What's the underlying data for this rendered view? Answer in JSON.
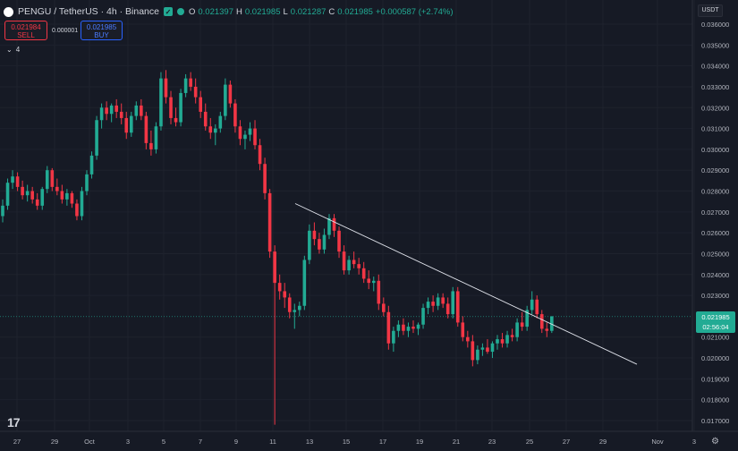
{
  "header": {
    "symbol": "PENGU / TetherUS · 4h · Binance",
    "ohlc": {
      "o_label": "O",
      "o_value": "0.021397",
      "h_label": "H",
      "h_value": "0.021985",
      "l_label": "L",
      "l_value": "0.021287",
      "c_label": "C",
      "c_value": "0.021985",
      "change": "+0.000587 (+2.74%)"
    }
  },
  "trade": {
    "sell_price": "0.021984",
    "sell_label": "SELL",
    "spread": "0.000001",
    "buy_price": "0.021985",
    "buy_label": "BUY"
  },
  "indicators_toggle": "4",
  "currency_button": "USDT",
  "price_tag": {
    "price": "0.021985",
    "countdown": "02:56:04"
  },
  "colors": {
    "up": "#22ab94",
    "down": "#f23645",
    "background": "#161a25",
    "trendline": "#e0e3eb"
  },
  "chart_data": {
    "type": "candlestick",
    "timeframe": "4h",
    "y_ticks": [
      "0.036000",
      "0.035000",
      "0.034000",
      "0.033000",
      "0.032000",
      "0.031000",
      "0.030000",
      "0.029000",
      "0.028000",
      "0.027000",
      "0.026000",
      "0.025000",
      "0.024000",
      "0.023000",
      "0.021000",
      "0.020000",
      "0.019000",
      "0.018000",
      "0.017000"
    ],
    "ylim": [
      0.0167,
      0.0366
    ],
    "x_ticks": [
      "27",
      "29",
      "Oct",
      "3",
      "5",
      "7",
      "9",
      "11",
      "13",
      "15",
      "17",
      "19",
      "21",
      "23",
      "25",
      "27",
      "29",
      "Nov",
      "3"
    ],
    "last_price": 0.021985,
    "trendline": {
      "from": [
        "Oct 12",
        0.0274
      ],
      "to": [
        "Nov 1",
        0.0197
      ]
    },
    "candles": [
      [
        0.0268,
        0.0276,
        0.0265,
        0.0273
      ],
      [
        0.0273,
        0.0286,
        0.0271,
        0.0284
      ],
      [
        0.0284,
        0.029,
        0.0281,
        0.0287
      ],
      [
        0.0287,
        0.0289,
        0.028,
        0.0282
      ],
      [
        0.0282,
        0.0285,
        0.0276,
        0.0278
      ],
      [
        0.0278,
        0.0283,
        0.0275,
        0.028
      ],
      [
        0.028,
        0.0282,
        0.0274,
        0.0276
      ],
      [
        0.0276,
        0.0279,
        0.0271,
        0.0273
      ],
      [
        0.0273,
        0.0282,
        0.0271,
        0.0281
      ],
      [
        0.0281,
        0.0292,
        0.0279,
        0.029
      ],
      [
        0.029,
        0.0291,
        0.028,
        0.0282
      ],
      [
        0.0282,
        0.0286,
        0.0278,
        0.028
      ],
      [
        0.028,
        0.0283,
        0.0274,
        0.0276
      ],
      [
        0.0276,
        0.0281,
        0.0273,
        0.0279
      ],
      [
        0.0279,
        0.028,
        0.0272,
        0.0274
      ],
      [
        0.0274,
        0.0276,
        0.0266,
        0.0268
      ],
      [
        0.0268,
        0.0282,
        0.0266,
        0.028
      ],
      [
        0.028,
        0.029,
        0.0278,
        0.0288
      ],
      [
        0.0288,
        0.0299,
        0.0286,
        0.0297
      ],
      [
        0.0297,
        0.0316,
        0.0295,
        0.0314
      ],
      [
        0.0314,
        0.0322,
        0.031,
        0.032
      ],
      [
        0.032,
        0.0323,
        0.0314,
        0.0317
      ],
      [
        0.0317,
        0.0322,
        0.0313,
        0.0321
      ],
      [
        0.0321,
        0.0324,
        0.0315,
        0.0318
      ],
      [
        0.0318,
        0.0322,
        0.0312,
        0.0315
      ],
      [
        0.0315,
        0.0318,
        0.0305,
        0.0308
      ],
      [
        0.0308,
        0.0318,
        0.0306,
        0.0316
      ],
      [
        0.0316,
        0.0323,
        0.0314,
        0.0321
      ],
      [
        0.0321,
        0.0324,
        0.0314,
        0.0316
      ],
      [
        0.0316,
        0.0318,
        0.03,
        0.0303
      ],
      [
        0.0303,
        0.0309,
        0.0297,
        0.03
      ],
      [
        0.03,
        0.0313,
        0.0298,
        0.0311
      ],
      [
        0.0311,
        0.0337,
        0.0309,
        0.0334
      ],
      [
        0.0334,
        0.0338,
        0.0322,
        0.0325
      ],
      [
        0.0325,
        0.0328,
        0.0312,
        0.0315
      ],
      [
        0.0315,
        0.032,
        0.0311,
        0.0313
      ],
      [
        0.0313,
        0.0329,
        0.0311,
        0.0327
      ],
      [
        0.0327,
        0.0336,
        0.0325,
        0.0334
      ],
      [
        0.0334,
        0.0337,
        0.0328,
        0.033
      ],
      [
        0.033,
        0.0334,
        0.0322,
        0.0325
      ],
      [
        0.0325,
        0.0328,
        0.0315,
        0.0318
      ],
      [
        0.0318,
        0.0322,
        0.0309,
        0.0311
      ],
      [
        0.0311,
        0.0315,
        0.0305,
        0.0308
      ],
      [
        0.0308,
        0.0312,
        0.0302,
        0.031
      ],
      [
        0.031,
        0.0318,
        0.0308,
        0.0316
      ],
      [
        0.0316,
        0.0334,
        0.0314,
        0.0331
      ],
      [
        0.0331,
        0.0333,
        0.032,
        0.0322
      ],
      [
        0.0322,
        0.0324,
        0.0308,
        0.0311
      ],
      [
        0.0311,
        0.0314,
        0.0302,
        0.0305
      ],
      [
        0.0305,
        0.0309,
        0.03,
        0.0307
      ],
      [
        0.0307,
        0.0313,
        0.0304,
        0.031
      ],
      [
        0.031,
        0.0314,
        0.03,
        0.0302
      ],
      [
        0.0302,
        0.0305,
        0.029,
        0.0293
      ],
      [
        0.0293,
        0.0296,
        0.0276,
        0.0279
      ],
      [
        0.0279,
        0.0281,
        0.0248,
        0.0251
      ],
      [
        0.0251,
        0.0254,
        0.0168,
        0.0236
      ],
      [
        0.0236,
        0.024,
        0.0228,
        0.0232
      ],
      [
        0.0232,
        0.0236,
        0.0224,
        0.0229
      ],
      [
        0.0229,
        0.0231,
        0.0219,
        0.0222
      ],
      [
        0.0222,
        0.0226,
        0.0214,
        0.0223
      ],
      [
        0.0223,
        0.0227,
        0.022,
        0.0225
      ],
      [
        0.0225,
        0.0249,
        0.0223,
        0.0247
      ],
      [
        0.0247,
        0.0264,
        0.0245,
        0.0261
      ],
      [
        0.0261,
        0.0265,
        0.0254,
        0.0257
      ],
      [
        0.0257,
        0.026,
        0.025,
        0.0252
      ],
      [
        0.0252,
        0.0262,
        0.025,
        0.0259
      ],
      [
        0.0259,
        0.0269,
        0.0257,
        0.0267
      ],
      [
        0.0267,
        0.0269,
        0.0258,
        0.0261
      ],
      [
        0.0261,
        0.0263,
        0.0248,
        0.0251
      ],
      [
        0.0251,
        0.0254,
        0.024,
        0.0242
      ],
      [
        0.0242,
        0.0249,
        0.024,
        0.0247
      ],
      [
        0.0247,
        0.0251,
        0.0243,
        0.0245
      ],
      [
        0.0245,
        0.0248,
        0.024,
        0.0243
      ],
      [
        0.0243,
        0.0246,
        0.0236,
        0.0238
      ],
      [
        0.0238,
        0.0242,
        0.0233,
        0.0236
      ],
      [
        0.0236,
        0.0239,
        0.0232,
        0.0237
      ],
      [
        0.0237,
        0.024,
        0.0223,
        0.0226
      ],
      [
        0.0226,
        0.0229,
        0.022,
        0.0222
      ],
      [
        0.0222,
        0.0225,
        0.0204,
        0.0207
      ],
      [
        0.0207,
        0.0215,
        0.0203,
        0.0213
      ],
      [
        0.0213,
        0.0218,
        0.021,
        0.0216
      ],
      [
        0.0216,
        0.0219,
        0.0211,
        0.0213
      ],
      [
        0.0213,
        0.0217,
        0.021,
        0.0215
      ],
      [
        0.0215,
        0.0218,
        0.0212,
        0.0214
      ],
      [
        0.0214,
        0.0217,
        0.0211,
        0.0216
      ],
      [
        0.0216,
        0.0226,
        0.0214,
        0.0224
      ],
      [
        0.0224,
        0.0229,
        0.0221,
        0.0227
      ],
      [
        0.0227,
        0.023,
        0.0222,
        0.0225
      ],
      [
        0.0225,
        0.0231,
        0.0223,
        0.0229
      ],
      [
        0.0229,
        0.0231,
        0.0224,
        0.0226
      ],
      [
        0.0226,
        0.0229,
        0.0219,
        0.0221
      ],
      [
        0.0221,
        0.0234,
        0.0219,
        0.0232
      ],
      [
        0.0232,
        0.0234,
        0.0215,
        0.0217
      ],
      [
        0.0217,
        0.022,
        0.0208,
        0.021
      ],
      [
        0.021,
        0.0213,
        0.0205,
        0.0208
      ],
      [
        0.0208,
        0.0211,
        0.0196,
        0.0199
      ],
      [
        0.0199,
        0.0206,
        0.0197,
        0.0204
      ],
      [
        0.0204,
        0.0207,
        0.0201,
        0.0205
      ],
      [
        0.0205,
        0.0209,
        0.0202,
        0.0203
      ],
      [
        0.0203,
        0.0208,
        0.02,
        0.0207
      ],
      [
        0.0207,
        0.0211,
        0.0204,
        0.0209
      ],
      [
        0.0209,
        0.0212,
        0.0205,
        0.0207
      ],
      [
        0.0207,
        0.0213,
        0.0205,
        0.0211
      ],
      [
        0.0211,
        0.0214,
        0.0208,
        0.021
      ],
      [
        0.021,
        0.0219,
        0.0208,
        0.0217
      ],
      [
        0.0217,
        0.0222,
        0.0213,
        0.0215
      ],
      [
        0.0215,
        0.0225,
        0.0213,
        0.0223
      ],
      [
        0.0223,
        0.0232,
        0.0221,
        0.0228
      ],
      [
        0.0228,
        0.023,
        0.0219,
        0.0221
      ],
      [
        0.0221,
        0.0223,
        0.0212,
        0.0214
      ],
      [
        0.0214,
        0.0217,
        0.021,
        0.0213
      ],
      [
        0.0213,
        0.022,
        0.0212,
        0.022
      ]
    ]
  }
}
